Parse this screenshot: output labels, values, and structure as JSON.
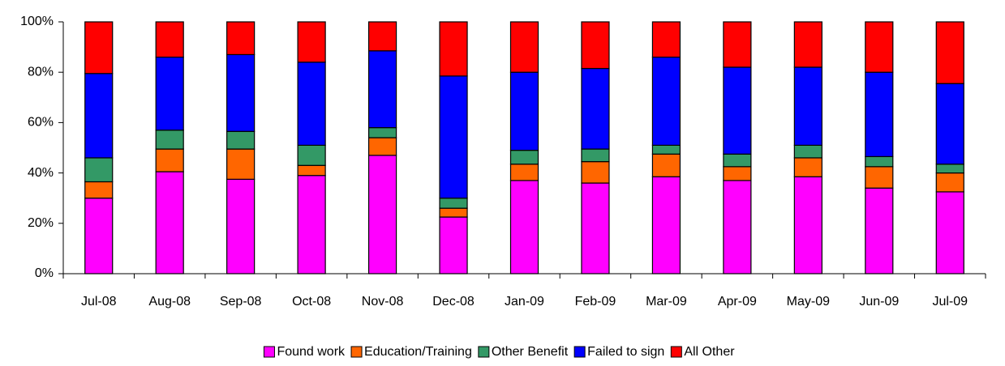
{
  "chart_data": {
    "type": "stacked-bar",
    "categories": [
      "Jul-08",
      "Aug-08",
      "Sep-08",
      "Oct-08",
      "Nov-08",
      "Dec-08",
      "Jan-09",
      "Feb-09",
      "Mar-09",
      "Apr-09",
      "May-09",
      "Jun-09",
      "Jul-09"
    ],
    "series": [
      {
        "name": "Found work",
        "color": "#ff00ff",
        "values": [
          30,
          40.5,
          37.5,
          39,
          47,
          22.5,
          37,
          36,
          38.5,
          37,
          38.5,
          34,
          32.5
        ]
      },
      {
        "name": "Education/Training",
        "color": "#ff6600",
        "values": [
          6.5,
          9,
          12,
          4,
          7,
          3.5,
          6.5,
          8.5,
          9,
          5.5,
          7.5,
          8.5,
          7.5
        ]
      },
      {
        "name": "Other Benefit",
        "color": "#339966",
        "values": [
          9.5,
          7.5,
          7,
          8,
          4,
          4,
          5.5,
          5,
          3.5,
          5,
          5,
          4,
          3.5
        ]
      },
      {
        "name": "Failed to sign",
        "color": "#0000ff",
        "values": [
          33.5,
          29,
          30.5,
          33,
          30.5,
          48.5,
          31,
          32,
          35,
          34.5,
          31,
          33.5,
          32
        ]
      },
      {
        "name": "All Other",
        "color": "#ff0000",
        "values": [
          20.5,
          14,
          13,
          16,
          11.5,
          21.5,
          20,
          18.5,
          14,
          18,
          18,
          20,
          24.5
        ]
      }
    ],
    "ylim": [
      0,
      100
    ],
    "yticks": [
      {
        "value": 0,
        "label": "0%"
      },
      {
        "value": 20,
        "label": "20%"
      },
      {
        "value": 40,
        "label": "40%"
      },
      {
        "value": 60,
        "label": "60%"
      },
      {
        "value": 80,
        "label": "80%"
      },
      {
        "value": 100,
        "label": "100%"
      }
    ],
    "grid": false,
    "legend": "bottom"
  }
}
